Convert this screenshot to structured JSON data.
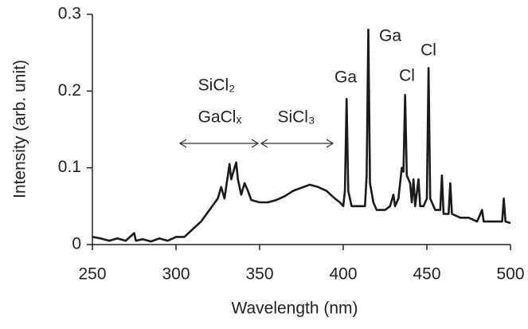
{
  "chart_data": {
    "type": "line",
    "xlabel": "Wavelength (nm)",
    "ylabel": "Intensity (arb. unit)",
    "xlim": [
      250,
      500
    ],
    "xticks": [
      250,
      300,
      350,
      400,
      450,
      500
    ],
    "ylim": [
      0,
      0.3
    ],
    "yticks": [
      0,
      0.1,
      0.2,
      0.3
    ],
    "x": [
      250,
      255,
      260,
      265,
      270,
      275,
      276,
      280,
      285,
      290,
      295,
      300,
      305,
      310,
      315,
      320,
      325,
      327,
      329,
      331,
      332,
      333,
      335,
      336,
      337,
      339,
      341,
      343,
      345,
      350,
      355,
      360,
      365,
      370,
      375,
      380,
      385,
      390,
      395,
      398,
      400,
      401,
      402,
      403,
      405,
      410,
      413,
      414,
      415,
      416,
      418,
      420,
      425,
      428,
      430,
      431,
      433,
      435,
      436,
      437,
      438,
      440,
      441,
      442,
      443,
      445,
      446,
      448,
      450,
      451,
      452,
      455,
      458,
      459,
      460,
      463,
      464,
      465,
      470,
      475,
      480,
      483,
      484,
      490,
      495,
      496,
      497,
      500
    ],
    "series": [
      {
        "color": "#1a1a1a",
        "values": [
          0.01,
          0.008,
          0.005,
          0.008,
          0.005,
          0.015,
          0.005,
          0.007,
          0.004,
          0.008,
          0.005,
          0.01,
          0.01,
          0.02,
          0.03,
          0.045,
          0.06,
          0.075,
          0.06,
          0.09,
          0.105,
          0.085,
          0.1,
          0.107,
          0.085,
          0.065,
          0.08,
          0.07,
          0.058,
          0.055,
          0.055,
          0.058,
          0.063,
          0.07,
          0.074,
          0.078,
          0.075,
          0.07,
          0.06,
          0.055,
          0.05,
          0.07,
          0.19,
          0.07,
          0.05,
          0.05,
          0.05,
          0.09,
          0.28,
          0.08,
          0.055,
          0.045,
          0.045,
          0.05,
          0.065,
          0.05,
          0.06,
          0.1,
          0.095,
          0.195,
          0.09,
          0.08,
          0.055,
          0.085,
          0.05,
          0.085,
          0.05,
          0.05,
          0.06,
          0.23,
          0.06,
          0.045,
          0.045,
          0.09,
          0.04,
          0.04,
          0.08,
          0.04,
          0.035,
          0.035,
          0.03,
          0.045,
          0.03,
          0.03,
          0.03,
          0.06,
          0.03,
          0.028
        ]
      }
    ],
    "annotations": [
      "SiCl₂",
      "GaClₓ",
      "SiCl₃",
      "Ga",
      "Ga",
      "Cl",
      "Cl"
    ]
  }
}
